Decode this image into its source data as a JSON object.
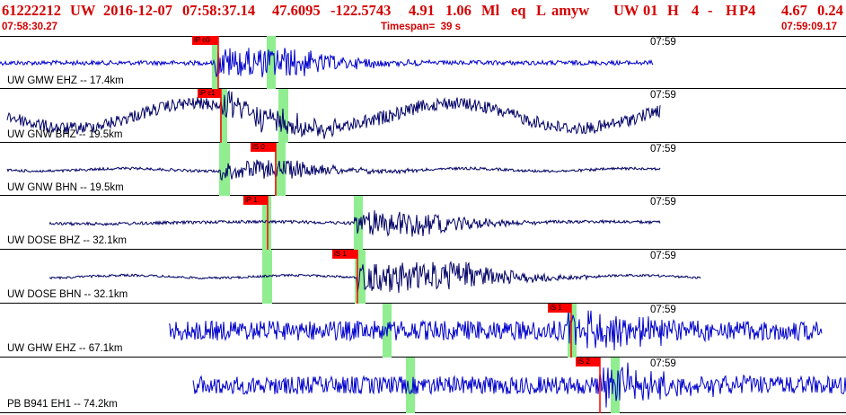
{
  "header": {
    "title_fields": [
      "61222212",
      "UW",
      "2016-12-07",
      "07:58:37.14",
      "47.6095",
      "-122.5743",
      "4.91",
      "1.06",
      "Ml",
      "eq",
      "L",
      "amyw",
      "UW",
      "01",
      "H",
      "4",
      "-",
      "H",
      "P4",
      "4.67",
      "0.24"
    ],
    "start_time": "07:58:30.27",
    "timespan": "Timespan=  39 s",
    "end_time": "07:59:09.17"
  },
  "colors": {
    "title": "#d40000",
    "trace_blue": "#0000cc",
    "trace_navy": "#000066",
    "window": "#90ee90",
    "pick": "#ff0000"
  },
  "panels": [
    {
      "label": "UW GMW EHZ -- 17.4km",
      "time_label": "07:59",
      "trace": "blue",
      "picks": [
        "iP c0"
      ]
    },
    {
      "label": "UW GNW BHZ -- 19.5km",
      "time_label": "07:59",
      "trace": "navy",
      "picks": [
        "iP c1"
      ]
    },
    {
      "label": "UW GNW BHN -- 19.5km",
      "time_label": "07:59",
      "trace": "navy",
      "picks": [
        "iS 0"
      ]
    },
    {
      "label": "UW DOSE BHZ -- 32.1km",
      "time_label": "07:59",
      "trace": "navy",
      "picks": [
        "iP 1"
      ]
    },
    {
      "label": "UW DOSE BHN -- 32.1km",
      "time_label": "07:59",
      "trace": "navy",
      "picks": [
        "iS 1"
      ]
    },
    {
      "label": "UW GHW EHZ -- 67.1km",
      "time_label": "07:59",
      "trace": "blue",
      "picks": [
        "iS 1"
      ]
    },
    {
      "label": "PB B941 EH1 -- 74.2km",
      "time_label": "07:59",
      "trace": "blue",
      "picks": [
        "iS 2"
      ]
    }
  ]
}
